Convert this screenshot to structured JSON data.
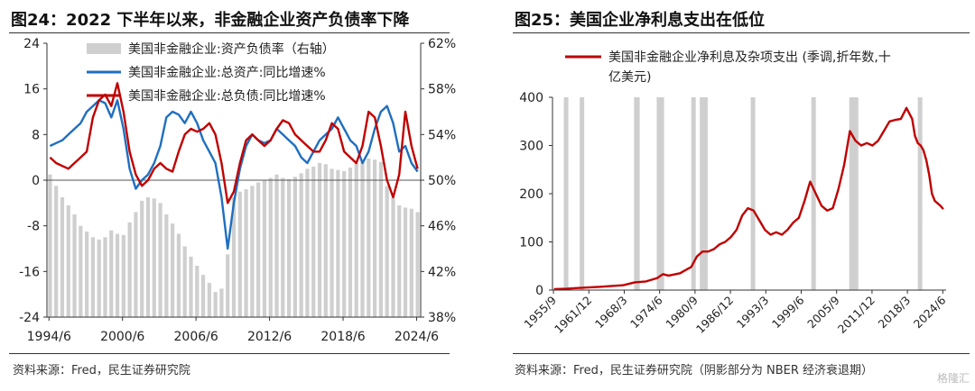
{
  "left": {
    "title": "图24：2022 下半年以来，非金融企业资产负债率下降",
    "source": "资料来源：Fred，民生证券研究院"
  },
  "right": {
    "title": "图25：美国企业净利息支出在低位",
    "source": "资料来源：Fred，民生证券研究院（阴影部分为 NBER 经济衰退期）"
  },
  "watermark": "格隆汇",
  "colors": {
    "blue": "#1f6fc0",
    "red": "#c00000",
    "gray": "#cfcfcf",
    "axis": "#333333"
  },
  "chart_data": [
    {
      "type": "line",
      "title": "图24：2022 下半年以来，非金融企业资产负债率下降",
      "x_tick_labels": [
        "1994/6",
        "2000/6",
        "2006/6",
        "2012/6",
        "2018/6",
        "2024/6"
      ],
      "x_range": [
        1994.25,
        2024.75
      ],
      "ylim_left": [
        -24,
        24
      ],
      "y_left_ticks": [
        -24,
        -16,
        -8,
        0,
        8,
        16,
        24
      ],
      "ylim_right": [
        38,
        62
      ],
      "y_right_ticks": [
        "38%",
        "42%",
        "46%",
        "50%",
        "54%",
        "58%",
        "62%"
      ],
      "legend_position": "top",
      "series": [
        {
          "name": "美国非金融企业:资产负债率（右轴）",
          "kind": "bar",
          "axis": "right",
          "color": "#cfcfcf",
          "x": [
            1994.5,
            1995.0,
            1995.5,
            1996.0,
            1996.5,
            1997.0,
            1997.5,
            1998.0,
            1998.5,
            1999.0,
            1999.5,
            2000.0,
            2000.5,
            2001.0,
            2001.5,
            2002.0,
            2002.5,
            2003.0,
            2003.5,
            2004.0,
            2004.5,
            2005.0,
            2005.5,
            2006.0,
            2006.5,
            2007.0,
            2007.5,
            2008.0,
            2008.5,
            2009.0,
            2009.5,
            2010.0,
            2010.5,
            2011.0,
            2011.5,
            2012.0,
            2012.5,
            2013.0,
            2013.5,
            2014.0,
            2014.5,
            2015.0,
            2015.5,
            2016.0,
            2016.5,
            2017.0,
            2017.5,
            2018.0,
            2018.5,
            2019.0,
            2019.5,
            2020.0,
            2020.5,
            2021.0,
            2021.5,
            2022.0,
            2022.5,
            2023.0,
            2023.5,
            2024.0,
            2024.5
          ],
          "values": [
            50.5,
            49.5,
            48.5,
            47.8,
            47.0,
            46.0,
            45.5,
            45.0,
            44.8,
            45.0,
            45.6,
            45.3,
            45.2,
            46.3,
            47.2,
            48.2,
            48.5,
            48.4,
            48.0,
            47.0,
            46.2,
            45.3,
            44.2,
            43.3,
            42.5,
            41.7,
            41.0,
            40.2,
            40.5,
            43.5,
            48.5,
            49.0,
            49.2,
            49.5,
            49.8,
            50.0,
            50.2,
            50.5,
            50.2,
            50.1,
            50.3,
            50.6,
            51.0,
            51.2,
            51.5,
            51.4,
            51.0,
            50.9,
            50.8,
            51.1,
            51.5,
            51.8,
            51.9,
            51.8,
            51.6,
            49.5,
            48.5,
            47.8,
            47.6,
            47.5,
            47.2
          ]
        },
        {
          "name": "美国非金融企业:总资产:同比增速%",
          "kind": "line",
          "axis": "left",
          "color": "#1f6fc0",
          "x": [
            1994.5,
            1995.0,
            1995.5,
            1996.0,
            1996.5,
            1997.0,
            1997.5,
            1998.0,
            1998.5,
            1999.0,
            1999.5,
            2000.0,
            2000.5,
            2001.0,
            2001.5,
            2002.0,
            2002.5,
            2003.0,
            2003.5,
            2004.0,
            2004.5,
            2005.0,
            2005.5,
            2006.0,
            2006.5,
            2007.0,
            2007.5,
            2008.0,
            2008.5,
            2009.0,
            2009.5,
            2010.0,
            2010.5,
            2011.0,
            2011.5,
            2012.0,
            2012.5,
            2013.0,
            2013.5,
            2014.0,
            2014.5,
            2015.0,
            2015.5,
            2016.0,
            2016.5,
            2017.0,
            2017.5,
            2018.0,
            2018.5,
            2019.0,
            2019.5,
            2020.0,
            2020.5,
            2021.0,
            2021.5,
            2022.0,
            2022.5,
            2023.0,
            2023.5,
            2024.0,
            2024.5
          ],
          "values": [
            6,
            6.5,
            7,
            8,
            9,
            10,
            12,
            13,
            14,
            13.5,
            11,
            14,
            9,
            2,
            -1.5,
            0,
            1,
            3,
            6,
            11,
            12,
            11.5,
            10,
            12,
            10,
            7,
            5,
            3,
            -3,
            -12,
            -4,
            2,
            6,
            8,
            7,
            6.5,
            7,
            9,
            8,
            7,
            6,
            4,
            3,
            5,
            7,
            8,
            9,
            11,
            9,
            7,
            6,
            3,
            5,
            9,
            12,
            13,
            10,
            5,
            6,
            3,
            1.5
          ]
        },
        {
          "name": "美国非金融企业:总负债:同比增速%",
          "kind": "line",
          "axis": "left",
          "color": "#c00000",
          "x": [
            1994.5,
            1995.0,
            1995.5,
            1996.0,
            1996.5,
            1997.0,
            1997.5,
            1998.0,
            1998.5,
            1999.0,
            1999.5,
            2000.0,
            2000.5,
            2001.0,
            2001.5,
            2002.0,
            2002.5,
            2003.0,
            2003.5,
            2004.0,
            2004.5,
            2005.0,
            2005.5,
            2006.0,
            2006.5,
            2007.0,
            2007.5,
            2008.0,
            2008.5,
            2009.0,
            2009.5,
            2010.0,
            2010.5,
            2011.0,
            2011.5,
            2012.0,
            2012.5,
            2013.0,
            2013.5,
            2014.0,
            2014.5,
            2015.0,
            2015.5,
            2016.0,
            2016.5,
            2017.0,
            2017.5,
            2018.0,
            2018.5,
            2019.0,
            2019.5,
            2020.0,
            2020.5,
            2021.0,
            2021.5,
            2022.0,
            2022.5,
            2023.0,
            2023.5,
            2024.0,
            2024.5
          ],
          "values": [
            4,
            3,
            2.5,
            2,
            3,
            4,
            5,
            11,
            14,
            15,
            13,
            17,
            12,
            5,
            1,
            -1,
            0,
            2,
            3,
            2,
            1.5,
            5,
            8,
            9,
            8.5,
            9,
            10,
            8,
            3,
            -4,
            -2,
            3,
            7,
            8,
            7,
            6,
            7,
            9,
            10.5,
            10,
            8,
            7,
            6,
            5,
            5,
            7,
            10,
            9,
            5,
            4,
            3,
            6,
            12,
            11,
            6,
            0,
            -3,
            1,
            12,
            6,
            2
          ]
        }
      ]
    },
    {
      "type": "line",
      "title": "图25：美国企业净利息支出在低位",
      "x_tick_labels": [
        "1955/9",
        "1961/12",
        "1968/3",
        "1974/6",
        "1980/9",
        "1986/12",
        "1993/3",
        "1999/6",
        "2005/9",
        "2011/12",
        "2018/3",
        "2024/6"
      ],
      "x_range": [
        1955.5,
        2025.0
      ],
      "ylim": [
        0,
        400
      ],
      "y_ticks": [
        0,
        100,
        200,
        300,
        400
      ],
      "legend_position": "top",
      "recessions": [
        [
          1957.5,
          1958.3
        ],
        [
          1960.3,
          1961.1
        ],
        [
          1969.9,
          1970.9
        ],
        [
          1973.9,
          1975.2
        ],
        [
          1980.0,
          1980.5
        ],
        [
          1981.5,
          1982.9
        ],
        [
          1990.5,
          1991.2
        ],
        [
          2001.2,
          2001.9
        ],
        [
          2007.9,
          2009.5
        ],
        [
          2020.0,
          2020.4
        ]
      ],
      "series": [
        {
          "name": "美国非金融企业净利息及杂项支出 (季调,折年数,十亿美元)",
          "color": "#c00000",
          "x": [
            1955.75,
            1958,
            1961,
            1964,
            1968,
            1970,
            1972,
            1974,
            1975,
            1976,
            1978,
            1980,
            1981,
            1982,
            1983,
            1984,
            1985,
            1986,
            1987,
            1988,
            1989,
            1990,
            1991,
            1992,
            1993,
            1994,
            1995,
            1996,
            1997,
            1998,
            1999,
            2000,
            2001,
            2002,
            2003,
            2004,
            2005,
            2006,
            2007,
            2008,
            2009,
            2010,
            2011,
            2012,
            2013,
            2014,
            2015,
            2016,
            2017,
            2018,
            2019,
            2019.5,
            2020,
            2020.5,
            2021,
            2021.5,
            2022,
            2022.5,
            2023,
            2023.5,
            2024,
            2024.5
          ],
          "values": [
            2,
            3,
            5,
            7,
            10,
            16,
            18,
            25,
            33,
            30,
            35,
            48,
            70,
            80,
            80,
            85,
            95,
            100,
            110,
            125,
            155,
            170,
            165,
            145,
            125,
            115,
            120,
            115,
            125,
            140,
            150,
            185,
            225,
            200,
            175,
            165,
            170,
            210,
            260,
            330,
            310,
            300,
            305,
            300,
            310,
            330,
            350,
            353,
            355,
            378,
            355,
            320,
            305,
            300,
            290,
            270,
            240,
            200,
            185,
            180,
            175,
            168
          ]
        }
      ]
    }
  ]
}
